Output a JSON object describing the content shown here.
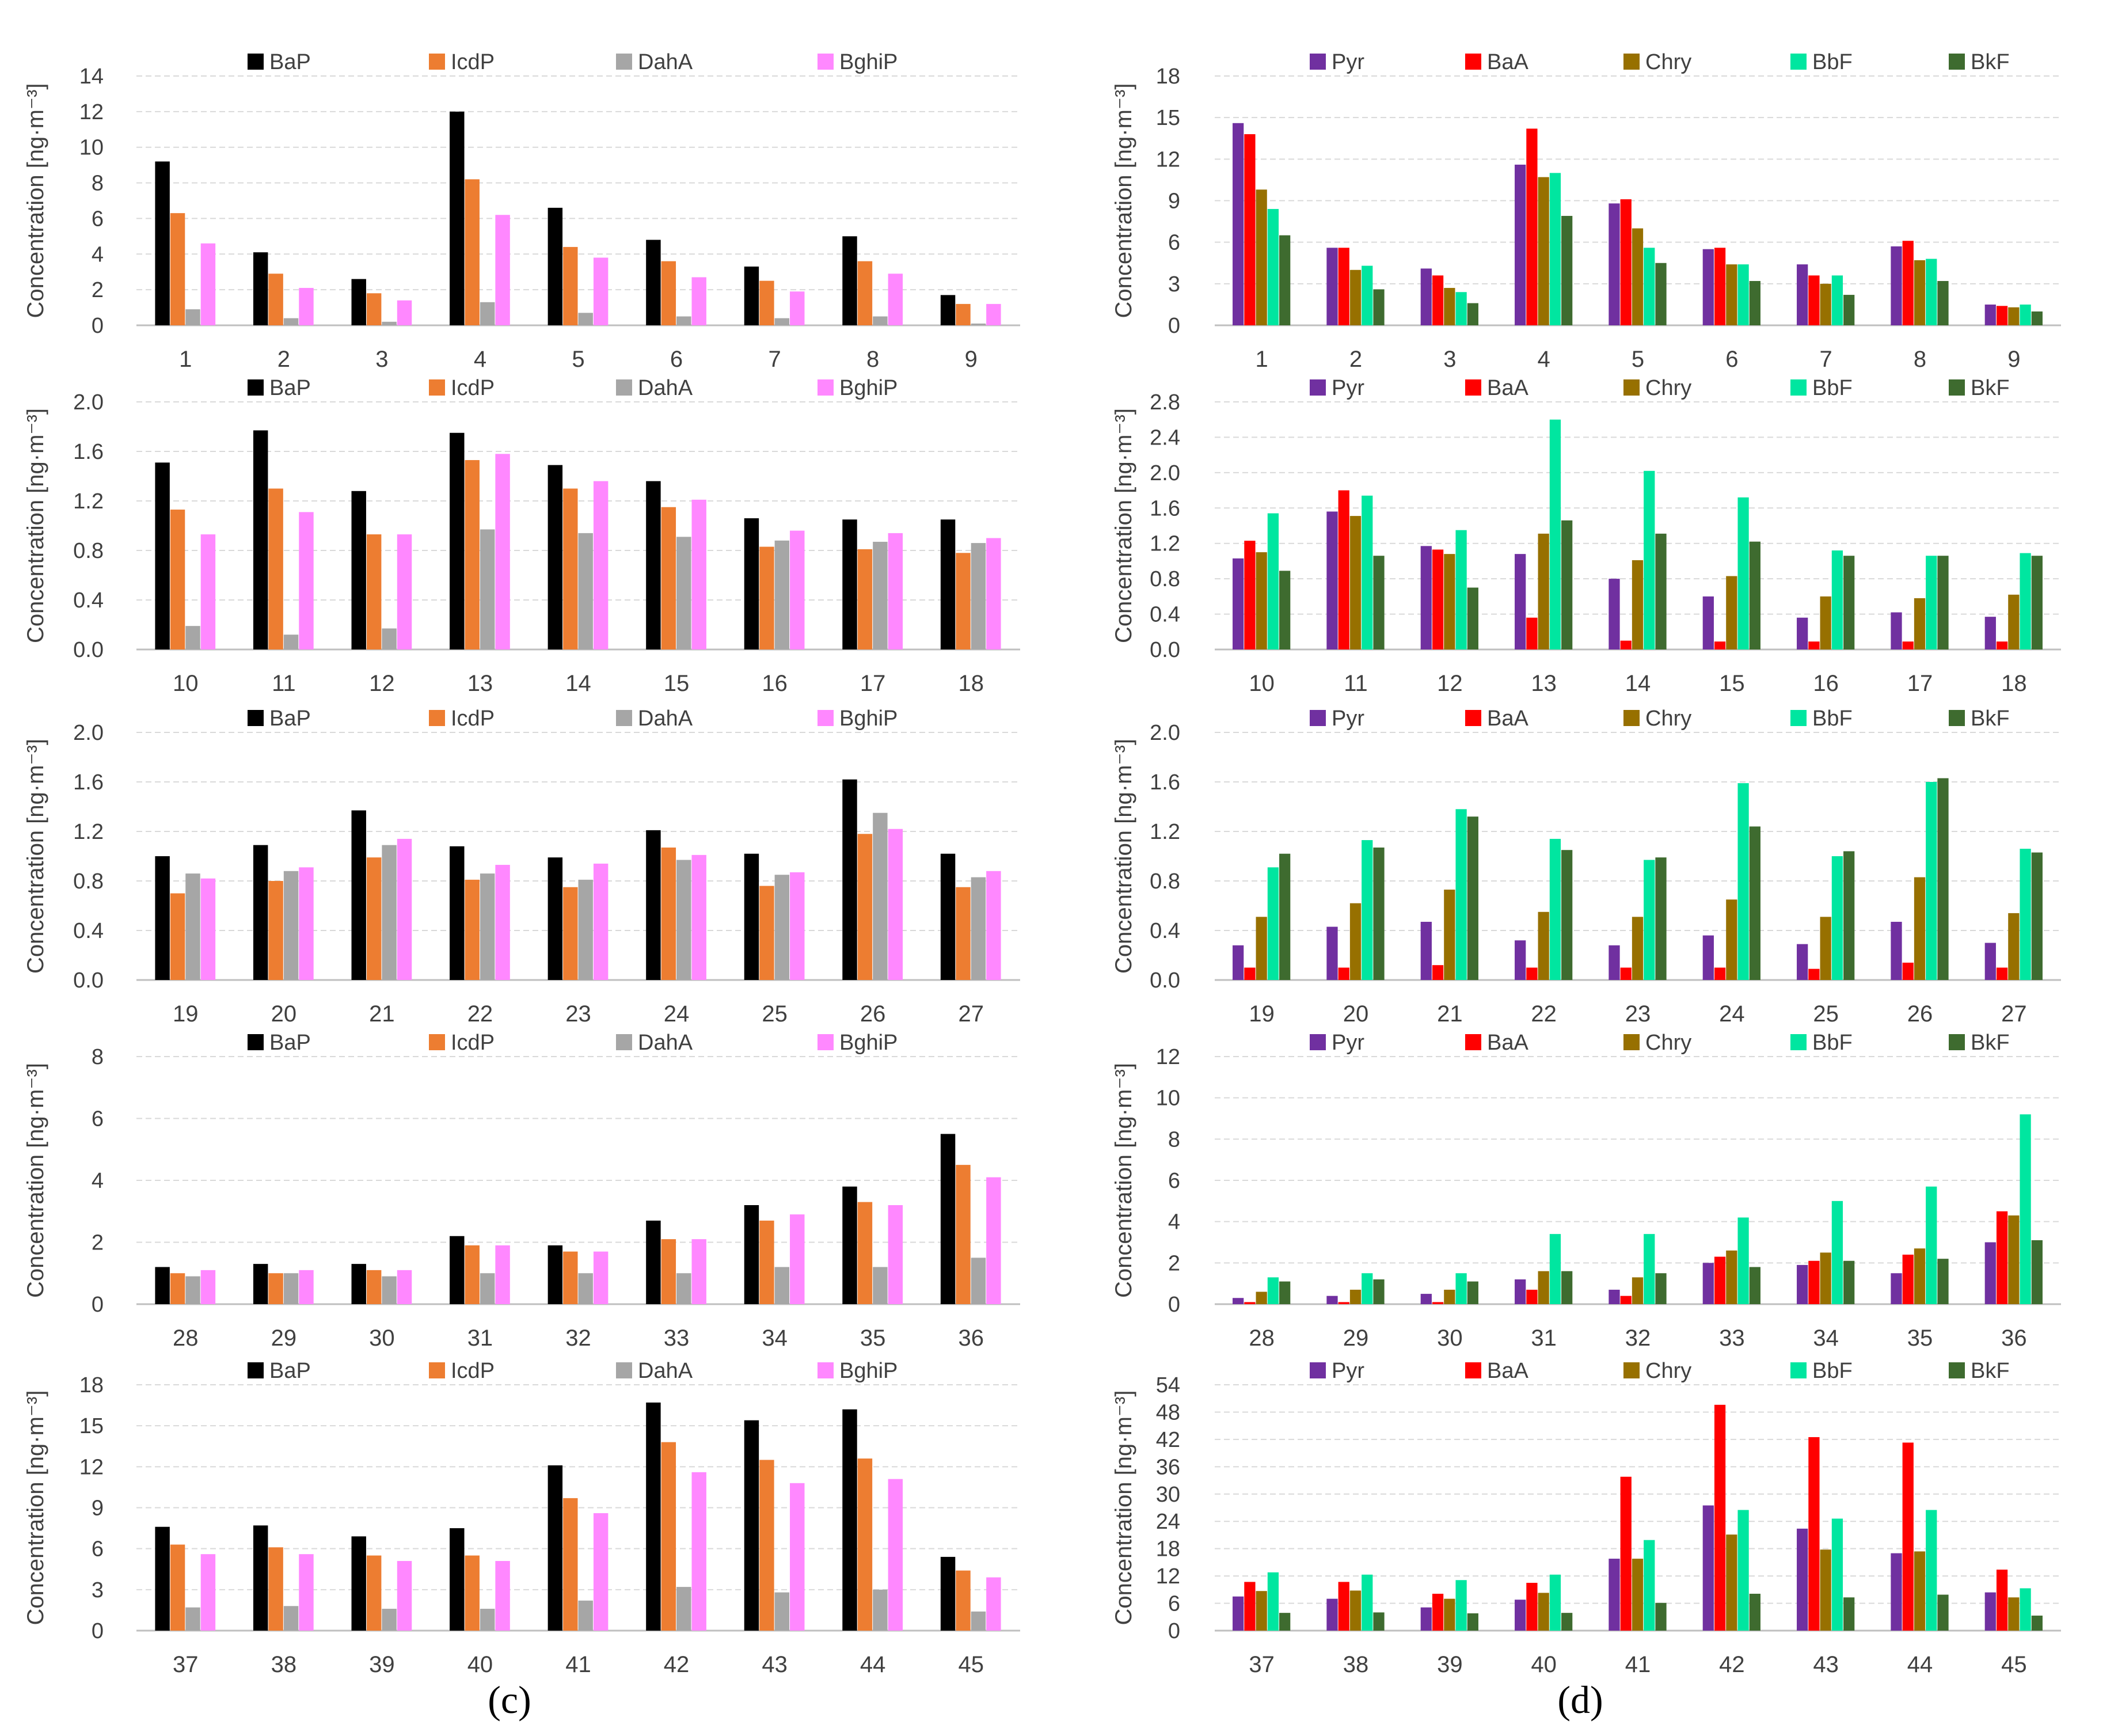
{
  "figure": {
    "ylabel": "Concentration [ng·m⁻³]",
    "panel_labels": {
      "c": "(c)",
      "d": "(d)"
    }
  },
  "colors": {
    "BaP": "#000000",
    "IcdP": "#ED7D31",
    "DahA": "#A6A6A6",
    "BghiP": "#FF88FF",
    "Pyr": "#7030A0",
    "BaA": "#FF0000",
    "Chry": "#977000",
    "BbF": "#00E6A0",
    "BkF": "#3E6B2F"
  },
  "chart_data": [
    {
      "id": "c1",
      "panel": "c",
      "type": "bar",
      "ylabel": "Concentration [ng·m⁻³]",
      "ylim": [
        0,
        14
      ],
      "yticks": [
        "0",
        "2",
        "4",
        "6",
        "8",
        "10",
        "12",
        "14"
      ],
      "categories": [
        "1",
        "2",
        "3",
        "4",
        "5",
        "6",
        "7",
        "8",
        "9"
      ],
      "series": [
        {
          "name": "BaP",
          "values": [
            9.2,
            4.1,
            2.6,
            12.0,
            6.6,
            4.8,
            3.3,
            5.0,
            1.7
          ]
        },
        {
          "name": "IcdP",
          "values": [
            6.3,
            2.9,
            1.8,
            8.2,
            4.4,
            3.6,
            2.5,
            3.6,
            1.2
          ]
        },
        {
          "name": "DahA",
          "values": [
            0.9,
            0.4,
            0.2,
            1.3,
            0.7,
            0.5,
            0.4,
            0.5,
            0.1
          ]
        },
        {
          "name": "BghiP",
          "values": [
            4.6,
            2.1,
            1.4,
            6.2,
            3.8,
            2.7,
            1.9,
            2.9,
            1.2
          ]
        }
      ]
    },
    {
      "id": "c2",
      "panel": "c",
      "type": "bar",
      "ylabel": "Concentration [ng·m⁻³]",
      "ylim": [
        0,
        2.0
      ],
      "yticks": [
        "0.0",
        "0.4",
        "0.8",
        "1.2",
        "1.6",
        "2.0"
      ],
      "categories": [
        "10",
        "11",
        "12",
        "13",
        "14",
        "15",
        "16",
        "17",
        "18"
      ],
      "series": [
        {
          "name": "BaP",
          "values": [
            1.51,
            1.77,
            1.28,
            1.75,
            1.49,
            1.36,
            1.06,
            1.05,
            1.05
          ]
        },
        {
          "name": "IcdP",
          "values": [
            1.13,
            1.3,
            0.93,
            1.53,
            1.3,
            1.15,
            0.83,
            0.81,
            0.78
          ]
        },
        {
          "name": "DahA",
          "values": [
            0.19,
            0.12,
            0.17,
            0.97,
            0.94,
            0.91,
            0.88,
            0.87,
            0.86
          ]
        },
        {
          "name": "BghiP",
          "values": [
            0.93,
            1.11,
            0.93,
            1.58,
            1.36,
            1.21,
            0.96,
            0.94,
            0.9
          ]
        }
      ]
    },
    {
      "id": "c3",
      "panel": "c",
      "type": "bar",
      "ylabel": "Concentration [ng·m⁻³]",
      "ylim": [
        0,
        2.0
      ],
      "yticks": [
        "0.0",
        "0.4",
        "0.8",
        "1.2",
        "1.6",
        "2.0"
      ],
      "categories": [
        "19",
        "20",
        "21",
        "22",
        "23",
        "24",
        "25",
        "26",
        "27"
      ],
      "series": [
        {
          "name": "BaP",
          "values": [
            1.0,
            1.09,
            1.37,
            1.08,
            0.99,
            1.21,
            1.02,
            1.62,
            1.02
          ]
        },
        {
          "name": "IcdP",
          "values": [
            0.7,
            0.8,
            0.99,
            0.81,
            0.75,
            1.07,
            0.76,
            1.18,
            0.75
          ]
        },
        {
          "name": "DahA",
          "values": [
            0.86,
            0.88,
            1.09,
            0.86,
            0.81,
            0.97,
            0.85,
            1.35,
            0.83
          ]
        },
        {
          "name": "BghiP",
          "values": [
            0.82,
            0.91,
            1.14,
            0.93,
            0.94,
            1.01,
            0.87,
            1.22,
            0.88
          ]
        }
      ]
    },
    {
      "id": "c4",
      "panel": "c",
      "type": "bar",
      "ylabel": "Concentration [ng·m⁻³]",
      "ylim": [
        0,
        8
      ],
      "yticks": [
        "0",
        "2",
        "4",
        "6",
        "8"
      ],
      "categories": [
        "28",
        "29",
        "30",
        "31",
        "32",
        "33",
        "34",
        "35",
        "36"
      ],
      "series": [
        {
          "name": "BaP",
          "values": [
            1.2,
            1.3,
            1.3,
            2.2,
            1.9,
            2.7,
            3.2,
            3.8,
            5.5
          ]
        },
        {
          "name": "IcdP",
          "values": [
            1.0,
            1.0,
            1.1,
            1.9,
            1.7,
            2.1,
            2.7,
            3.3,
            4.5
          ]
        },
        {
          "name": "DahA",
          "values": [
            0.9,
            1.0,
            0.9,
            1.0,
            1.0,
            1.0,
            1.2,
            1.2,
            1.5
          ]
        },
        {
          "name": "BghiP",
          "values": [
            1.1,
            1.1,
            1.1,
            1.9,
            1.7,
            2.1,
            2.9,
            3.2,
            4.1
          ]
        }
      ]
    },
    {
      "id": "c5",
      "panel": "c",
      "type": "bar",
      "ylabel": "Concentration [ng·m⁻³]",
      "ylim": [
        0,
        18
      ],
      "yticks": [
        "0",
        "3",
        "6",
        "9",
        "12",
        "15",
        "18"
      ],
      "categories": [
        "37",
        "38",
        "39",
        "40",
        "41",
        "42",
        "43",
        "44",
        "45"
      ],
      "series": [
        {
          "name": "BaP",
          "values": [
            7.6,
            7.7,
            6.9,
            7.5,
            12.1,
            16.7,
            15.4,
            16.2,
            5.4
          ]
        },
        {
          "name": "IcdP",
          "values": [
            6.3,
            6.1,
            5.5,
            5.5,
            9.7,
            13.8,
            12.5,
            12.6,
            4.4
          ]
        },
        {
          "name": "DahA",
          "values": [
            1.7,
            1.8,
            1.6,
            1.6,
            2.2,
            3.2,
            2.8,
            3.0,
            1.4
          ]
        },
        {
          "name": "BghiP",
          "values": [
            5.6,
            5.6,
            5.1,
            5.1,
            8.6,
            11.6,
            10.8,
            11.1,
            3.9
          ]
        }
      ]
    },
    {
      "id": "d1",
      "panel": "d",
      "type": "bar",
      "ylabel": "Concentration [ng·m⁻³]",
      "ylim": [
        0,
        18
      ],
      "yticks": [
        "0",
        "3",
        "6",
        "9",
        "12",
        "15",
        "18"
      ],
      "categories": [
        "1",
        "2",
        "3",
        "4",
        "5",
        "6",
        "7",
        "8",
        "9"
      ],
      "series": [
        {
          "name": "Pyr",
          "values": [
            14.6,
            5.6,
            4.1,
            11.6,
            8.8,
            5.5,
            4.4,
            5.7,
            1.5
          ]
        },
        {
          "name": "BaA",
          "values": [
            13.8,
            5.6,
            3.6,
            14.2,
            9.1,
            5.6,
            3.6,
            6.1,
            1.4
          ]
        },
        {
          "name": "Chry",
          "values": [
            9.8,
            4.0,
            2.7,
            10.7,
            7.0,
            4.4,
            3.0,
            4.7,
            1.3
          ]
        },
        {
          "name": "BbF",
          "values": [
            8.4,
            4.3,
            2.4,
            11.0,
            5.6,
            4.4,
            3.6,
            4.8,
            1.5
          ]
        },
        {
          "name": "BkF",
          "values": [
            6.5,
            2.6,
            1.6,
            7.9,
            4.5,
            3.2,
            2.2,
            3.2,
            1.0
          ]
        }
      ]
    },
    {
      "id": "d2",
      "panel": "d",
      "type": "bar",
      "ylabel": "Concentration [ng·m⁻³]",
      "ylim": [
        0,
        2.8
      ],
      "yticks": [
        "0.0",
        "0.4",
        "0.8",
        "1.2",
        "1.6",
        "2.0",
        "2.4",
        "2.8"
      ],
      "categories": [
        "10",
        "11",
        "12",
        "13",
        "14",
        "15",
        "16",
        "17",
        "18"
      ],
      "series": [
        {
          "name": "Pyr",
          "values": [
            1.03,
            1.56,
            1.17,
            1.08,
            0.8,
            0.6,
            0.36,
            0.42,
            0.37
          ]
        },
        {
          "name": "BaA",
          "values": [
            1.23,
            1.8,
            1.13,
            0.36,
            0.1,
            0.09,
            0.09,
            0.09,
            0.09
          ]
        },
        {
          "name": "Chry",
          "values": [
            1.1,
            1.51,
            1.08,
            1.31,
            1.01,
            0.83,
            0.6,
            0.58,
            0.62
          ]
        },
        {
          "name": "BbF",
          "values": [
            1.54,
            1.74,
            1.35,
            2.6,
            2.02,
            1.72,
            1.12,
            1.06,
            1.09
          ]
        },
        {
          "name": "BkF",
          "values": [
            0.89,
            1.06,
            0.7,
            1.46,
            1.31,
            1.22,
            1.06,
            1.06,
            1.06
          ]
        }
      ]
    },
    {
      "id": "d3",
      "panel": "d",
      "type": "bar",
      "ylabel": "Concentration [ng·m⁻³]",
      "ylim": [
        0,
        2.0
      ],
      "yticks": [
        "0.0",
        "0.4",
        "0.8",
        "1.2",
        "1.6",
        "2.0"
      ],
      "categories": [
        "19",
        "20",
        "21",
        "22",
        "23",
        "24",
        "25",
        "26",
        "27"
      ],
      "series": [
        {
          "name": "Pyr",
          "values": [
            0.28,
            0.43,
            0.47,
            0.32,
            0.28,
            0.36,
            0.29,
            0.47,
            0.3
          ]
        },
        {
          "name": "BaA",
          "values": [
            0.1,
            0.1,
            0.12,
            0.1,
            0.1,
            0.1,
            0.09,
            0.14,
            0.1
          ]
        },
        {
          "name": "Chry",
          "values": [
            0.51,
            0.62,
            0.73,
            0.55,
            0.51,
            0.65,
            0.51,
            0.83,
            0.54
          ]
        },
        {
          "name": "BbF",
          "values": [
            0.91,
            1.13,
            1.38,
            1.14,
            0.97,
            1.59,
            1.0,
            1.6,
            1.06
          ]
        },
        {
          "name": "BkF",
          "values": [
            1.02,
            1.07,
            1.32,
            1.05,
            0.99,
            1.24,
            1.04,
            1.63,
            1.03
          ]
        }
      ]
    },
    {
      "id": "d4",
      "panel": "d",
      "type": "bar",
      "ylabel": "Concentration [ng·m⁻³]",
      "ylim": [
        0,
        12
      ],
      "yticks": [
        "0",
        "2",
        "4",
        "6",
        "8",
        "10",
        "12"
      ],
      "categories": [
        "28",
        "29",
        "30",
        "31",
        "32",
        "33",
        "34",
        "35",
        "36"
      ],
      "series": [
        {
          "name": "Pyr",
          "values": [
            0.3,
            0.4,
            0.5,
            1.2,
            0.7,
            2.0,
            1.9,
            1.5,
            3.0
          ]
        },
        {
          "name": "BaA",
          "values": [
            0.1,
            0.1,
            0.1,
            0.7,
            0.4,
            2.3,
            2.1,
            2.4,
            4.5
          ]
        },
        {
          "name": "Chry",
          "values": [
            0.6,
            0.7,
            0.7,
            1.6,
            1.3,
            2.6,
            2.5,
            2.7,
            4.3
          ]
        },
        {
          "name": "BbF",
          "values": [
            1.3,
            1.5,
            1.5,
            3.4,
            3.4,
            4.2,
            5.0,
            5.7,
            9.2
          ]
        },
        {
          "name": "BkF",
          "values": [
            1.1,
            1.2,
            1.1,
            1.6,
            1.5,
            1.8,
            2.1,
            2.2,
            3.1
          ]
        }
      ]
    },
    {
      "id": "d5",
      "panel": "d",
      "type": "bar",
      "ylabel": "Concentration [ng·m⁻³]",
      "ylim": [
        0,
        54
      ],
      "yticks": [
        "0",
        "6",
        "12",
        "18",
        "24",
        "30",
        "36",
        "42",
        "48",
        "54"
      ],
      "categories": [
        "37",
        "38",
        "39",
        "40",
        "41",
        "42",
        "43",
        "44",
        "45"
      ],
      "series": [
        {
          "name": "Pyr",
          "values": [
            7.5,
            7.0,
            5.1,
            6.8,
            15.8,
            27.5,
            22.4,
            17.0,
            8.4
          ]
        },
        {
          "name": "BaA",
          "values": [
            10.7,
            10.7,
            8.1,
            10.5,
            33.8,
            49.6,
            42.5,
            41.3,
            13.4
          ]
        },
        {
          "name": "Chry",
          "values": [
            8.7,
            8.8,
            7.0,
            8.3,
            15.8,
            21.1,
            17.8,
            17.4,
            7.3
          ]
        },
        {
          "name": "BbF",
          "values": [
            12.8,
            12.3,
            11.1,
            12.3,
            19.9,
            26.5,
            24.6,
            26.5,
            9.3
          ]
        },
        {
          "name": "BkF",
          "values": [
            3.9,
            4.0,
            3.8,
            3.9,
            6.1,
            8.1,
            7.3,
            7.9,
            3.3
          ]
        }
      ]
    }
  ]
}
